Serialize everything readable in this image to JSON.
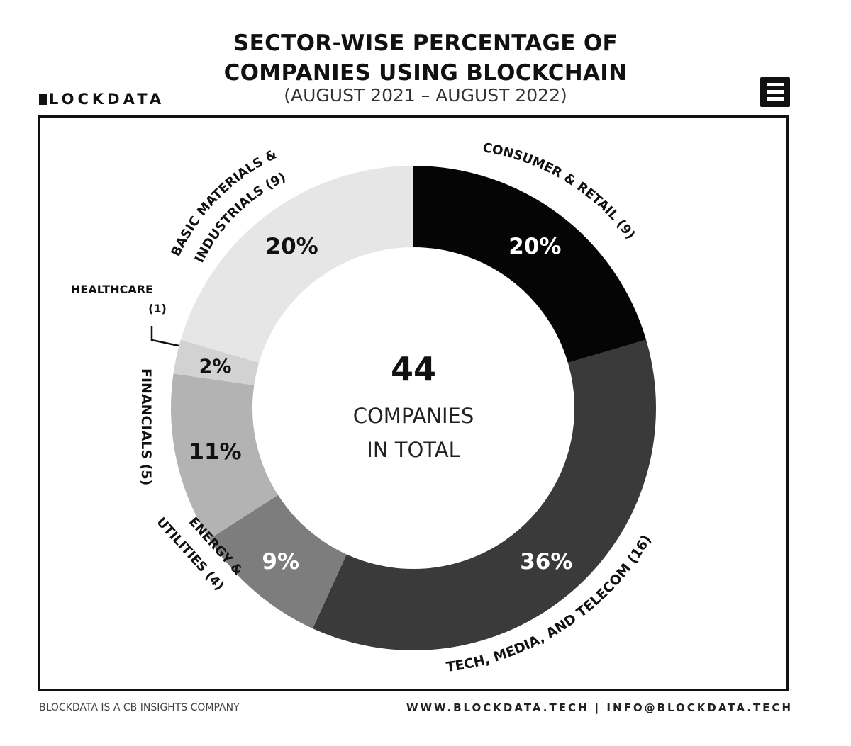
{
  "header": {
    "title_line1": "SECTOR-WISE PERCENTAGE OF",
    "title_line2": "COMPANIES USING BLOCKCHAIN",
    "subtitle": "(AUGUST 2021 – AUGUST 2022)",
    "brand": "LOCKDATA"
  },
  "center": {
    "count": "44",
    "line1": "COMPANIES",
    "line2": "IN TOTAL"
  },
  "footer": {
    "left": "BLOCKDATA IS A CB INSIGHTS COMPANY",
    "right": "WWW.BLOCKDATA.TECH | INFO@BLOCKDATA.TECH"
  },
  "chart_data": {
    "type": "pie",
    "title": "SECTOR-WISE PERCENTAGE OF COMPANIES USING BLOCKCHAIN",
    "subtitle": "(AUGUST 2021 – AUGUST 2022)",
    "total": 44,
    "slices": [
      {
        "label": "CONSUMER & RETAIL (9)",
        "count": 9,
        "percent": "20%",
        "color": "#050505",
        "text_color": "#ffffff"
      },
      {
        "label": "TECH, MEDIA, AND TELECOM (16)",
        "count": 16,
        "percent": "36%",
        "color": "#3a3a3a",
        "text_color": "#ffffff"
      },
      {
        "label": "ENERGY & UTILITIES (4)",
        "count": 4,
        "percent": "9%",
        "color": "#7d7d7d",
        "text_color": "#ffffff"
      },
      {
        "label": "FINANCIALS (5)",
        "count": 5,
        "percent": "11%",
        "color": "#b3b3b3",
        "text_color": "#111111"
      },
      {
        "label": "HEALTHCARE (1)",
        "count": 1,
        "percent": "2%",
        "color": "#d2d2d2",
        "text_color": "#111111"
      },
      {
        "label": "BASIC MATERIALS & INDUSTRIALS (9)",
        "count": 9,
        "percent": "20%",
        "color": "#e6e6e6",
        "text_color": "#111111"
      }
    ]
  }
}
